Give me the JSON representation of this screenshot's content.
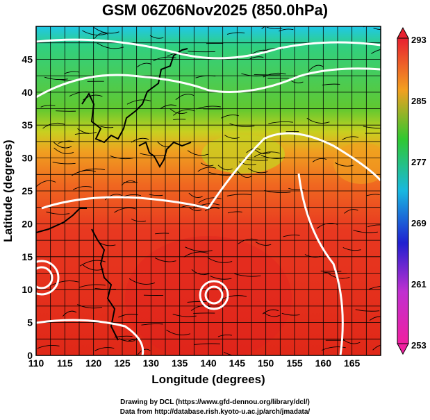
{
  "title": "GSM 06Z06Nov2025 (850.0hPa)",
  "map": {
    "xlabel": "Longitude (degrees)",
    "ylabel": "Latitude  (degrees)",
    "lon_range": [
      110,
      170
    ],
    "lat_range": [
      0,
      50
    ],
    "lon_ticks": [
      "110",
      "115",
      "120",
      "125",
      "130",
      "135",
      "140",
      "145",
      "150",
      "155",
      "160",
      "165"
    ],
    "lat_ticks": [
      "0",
      "5",
      "10",
      "15",
      "20",
      "25",
      "30",
      "35",
      "40",
      "45"
    ],
    "grid": true
  },
  "colorbar": {
    "labels": [
      "293",
      "285",
      "277",
      "269",
      "261",
      "253"
    ],
    "colors": [
      "#e8203a",
      "#f2a020",
      "#30c830",
      "#18b8e0",
      "#2020d0",
      "#e030d0"
    ]
  },
  "credits": {
    "line1": "Drawing by DCL (https://www.gfd-dennou.org/library/dcl/)",
    "line2": "Data from http://database.rish.kyoto-u.ac.jp/arch/jmadata/"
  }
}
